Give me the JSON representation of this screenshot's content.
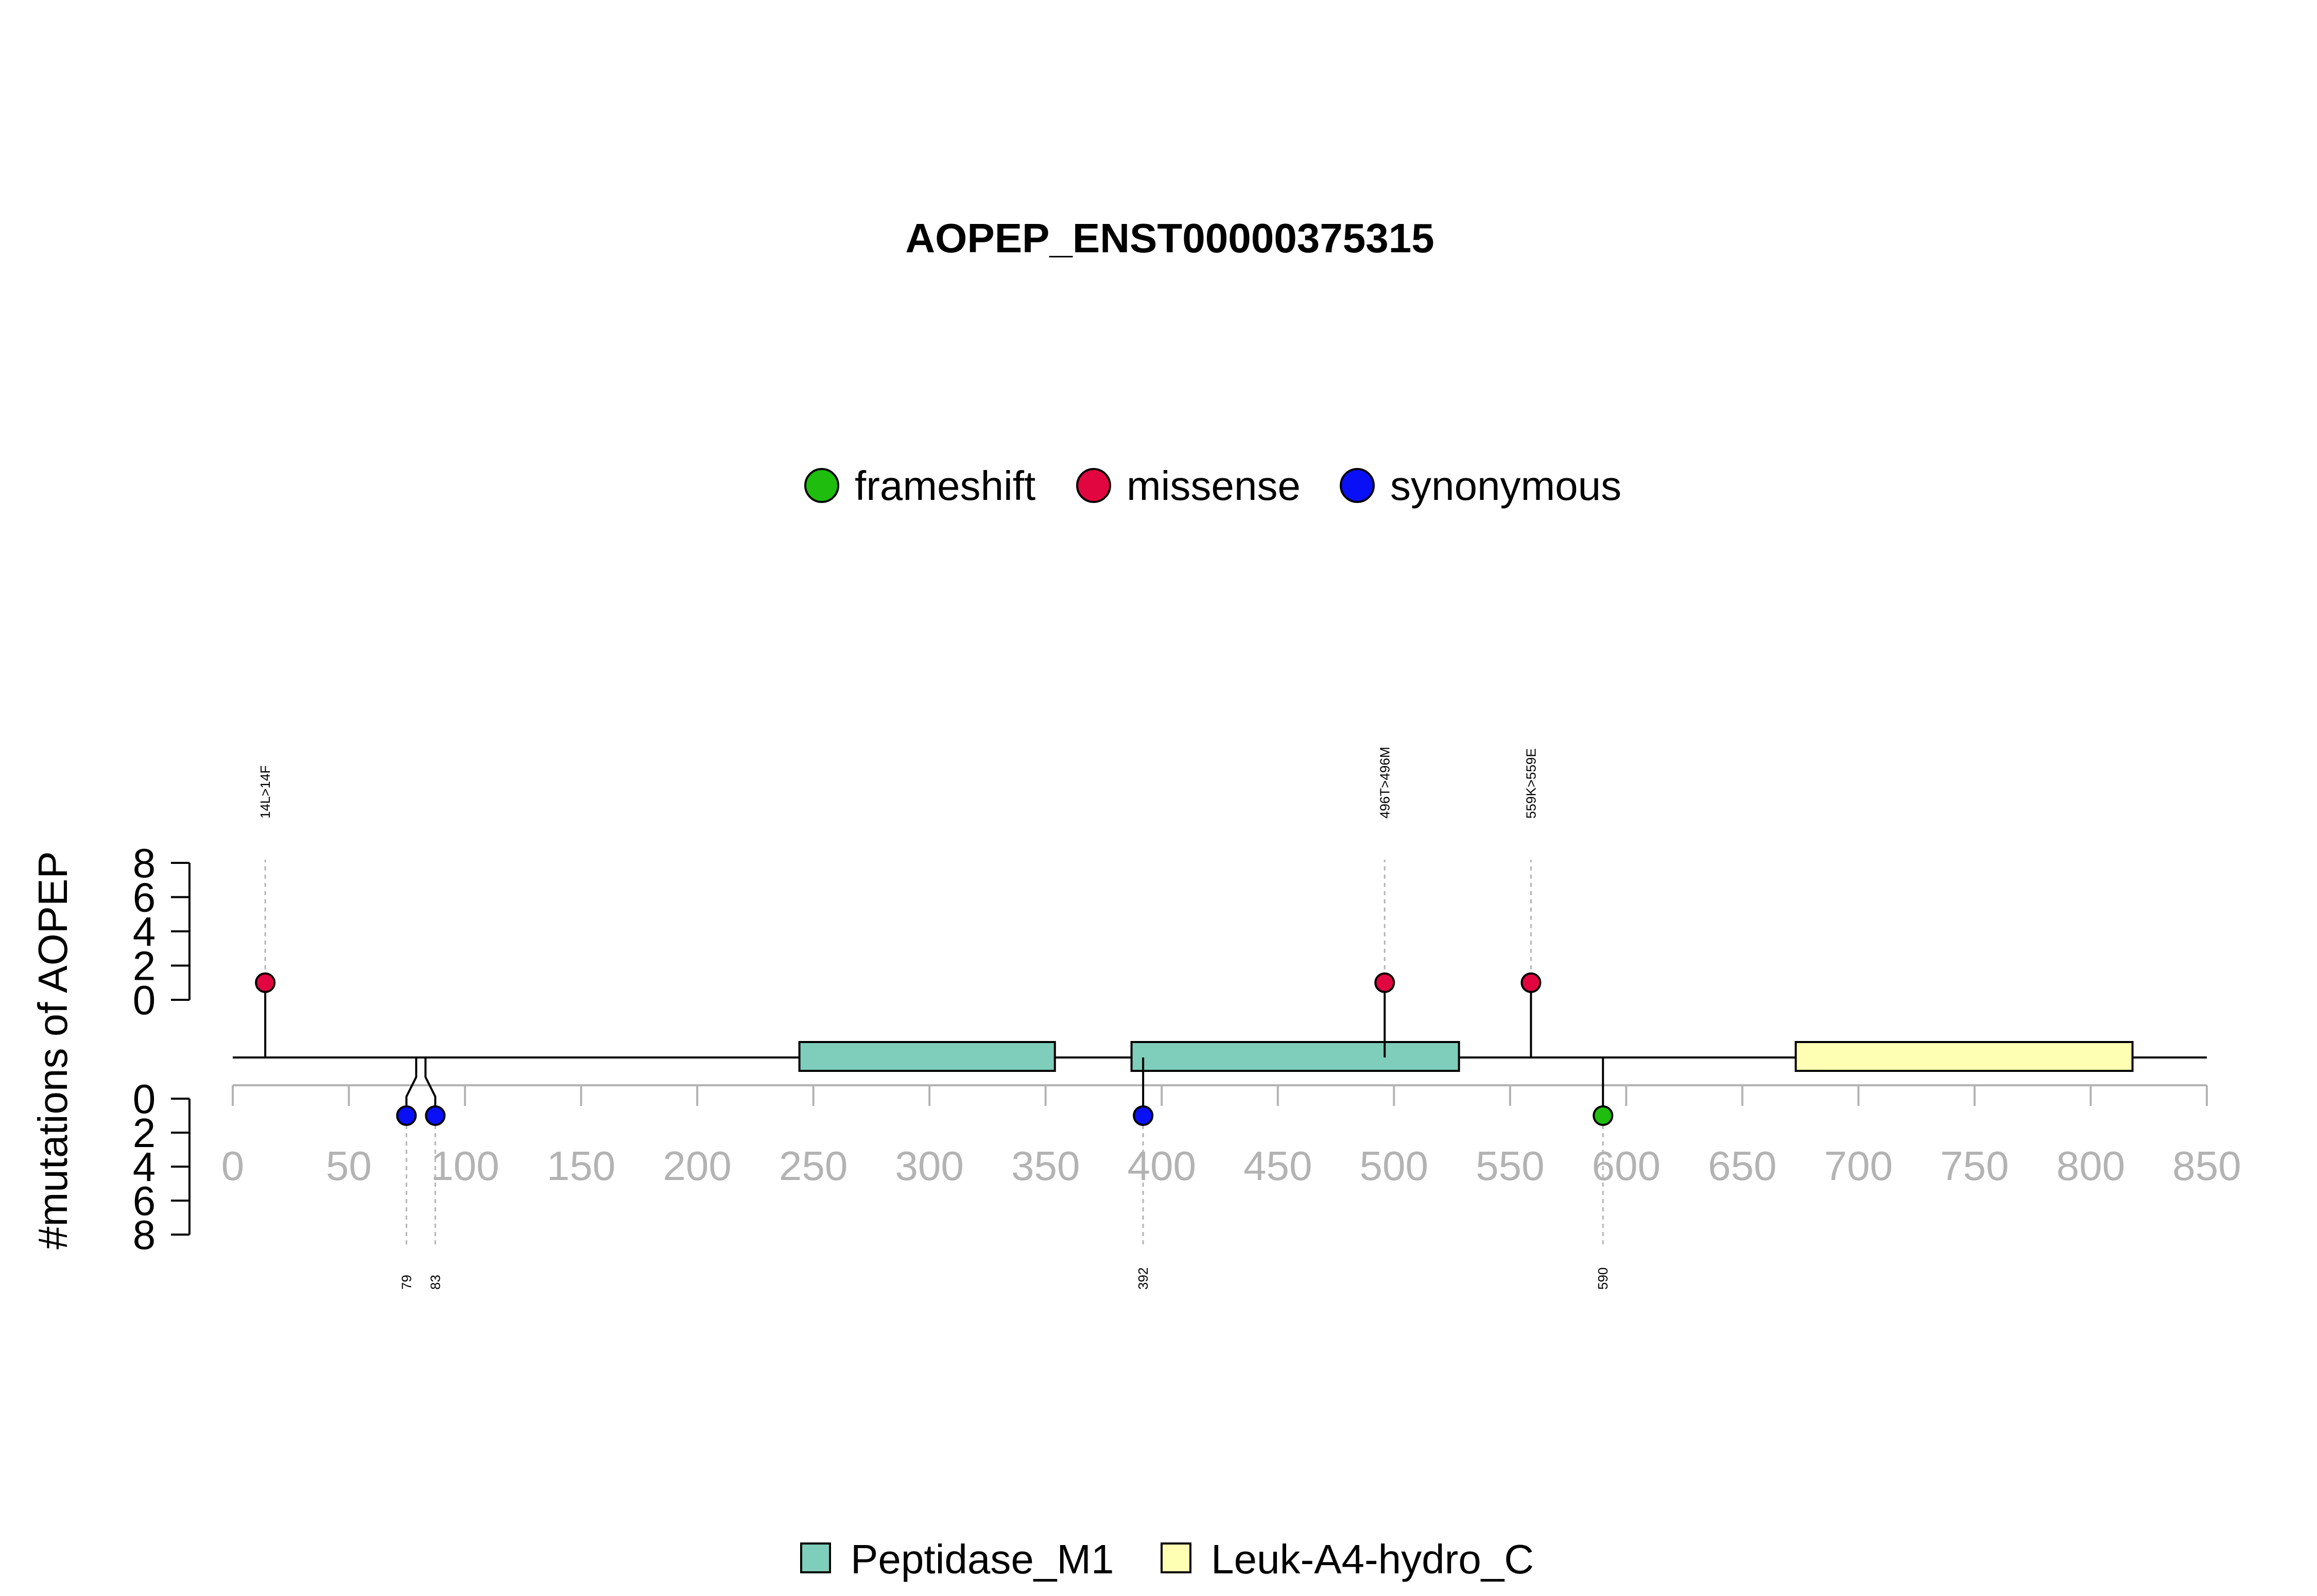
{
  "chart_data": {
    "type": "lollipop",
    "title": "AOPEP_ENST00000375315",
    "ylabel": "#mutations of AOPEP",
    "xlim": [
      0,
      850
    ],
    "x_ticks": [
      0,
      50,
      100,
      150,
      200,
      250,
      300,
      350,
      400,
      450,
      500,
      550,
      600,
      650,
      700,
      750,
      800,
      850
    ],
    "y_ticks": [
      0,
      2,
      4,
      6,
      8
    ],
    "ylim": [
      0,
      8
    ],
    "mutation_types": [
      {
        "name": "frameshift",
        "color": "#1ebd0e"
      },
      {
        "name": "missense",
        "color": "#e1063f"
      },
      {
        "name": "synonymous",
        "color": "#0a10f5"
      }
    ],
    "mutations_top": [
      {
        "position": 14,
        "count": 1,
        "type": "missense",
        "label": "14L>14F"
      },
      {
        "position": 496,
        "count": 1,
        "type": "missense",
        "label": "496T>496M"
      },
      {
        "position": 559,
        "count": 1,
        "type": "missense",
        "label": "559K>559E"
      }
    ],
    "mutations_bottom": [
      {
        "position": 79,
        "count": 1,
        "type": "synonymous",
        "label": "79"
      },
      {
        "position": 83,
        "count": 1,
        "type": "synonymous",
        "label": "83"
      },
      {
        "position": 392,
        "count": 1,
        "type": "synonymous",
        "label": "392"
      },
      {
        "position": 590,
        "count": 1,
        "type": "frameshift",
        "label": "590"
      }
    ],
    "domains": [
      {
        "name": "Peptidase_M1",
        "start": 244,
        "end": 354,
        "color": "#7fcdbb"
      },
      {
        "name": "Peptidase_M1",
        "start": 387,
        "end": 528,
        "color": "#7fcdbb"
      },
      {
        "name": "Leuk-A4-hydro_C",
        "start": 673,
        "end": 818,
        "color": "#ffffb3"
      }
    ],
    "domain_legend": [
      {
        "name": "Peptidase_M1",
        "color": "#7fcdbb"
      },
      {
        "name": "Leuk-A4-hydro_C",
        "color": "#ffffb3"
      }
    ]
  }
}
